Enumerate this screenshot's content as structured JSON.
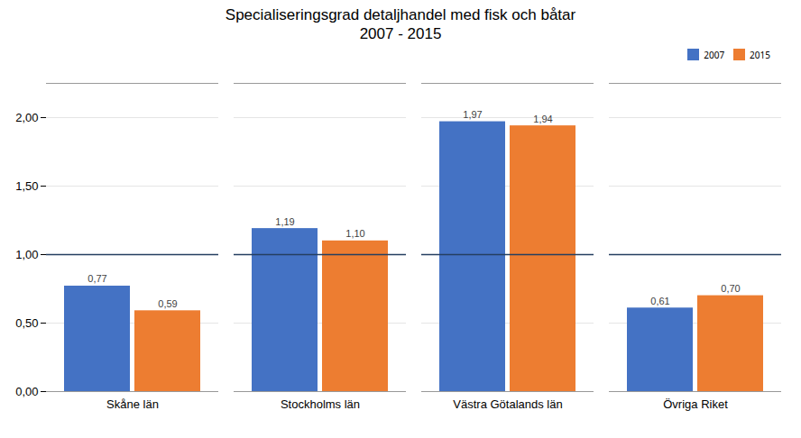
{
  "chart_data": {
    "type": "bar",
    "title": "Specialiseringsgrad detaljhandel med fisk och båtar\n2007 - 2015",
    "categories": [
      "Skåne län",
      "Stockholms län",
      "Västra Götalands län",
      "Övriga Riket"
    ],
    "series": [
      {
        "name": "2007",
        "color": "#4472C4",
        "values": [
          0.77,
          1.19,
          1.97,
          0.61
        ],
        "value_labels": [
          "0,77",
          "1,19",
          "1,97",
          "0,61"
        ]
      },
      {
        "name": "2015",
        "color": "#ED7D31",
        "values": [
          0.59,
          1.1,
          1.94,
          0.7
        ],
        "value_labels": [
          "0,59",
          "1,10",
          "1,94",
          "0,70"
        ]
      }
    ],
    "ylim": [
      0,
      2.25
    ],
    "yticks": [
      {
        "value": 0.0,
        "label": "0,00"
      },
      {
        "value": 0.5,
        "label": "0,50"
      },
      {
        "value": 1.0,
        "label": "1,00"
      },
      {
        "value": 1.5,
        "label": "1,50"
      },
      {
        "value": 2.0,
        "label": "2,00"
      }
    ],
    "reference_line": {
      "value": 1.0,
      "color": "#243F60"
    },
    "grid": true,
    "legend": "upper right",
    "data_labels": true
  }
}
